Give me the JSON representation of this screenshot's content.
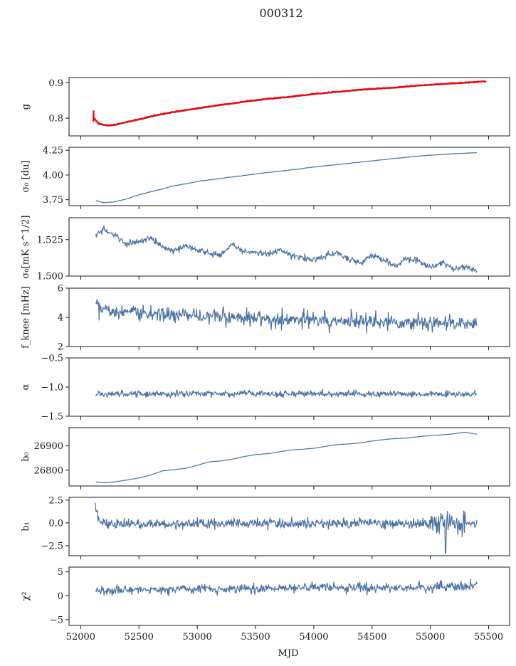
{
  "figure": {
    "title": "000312"
  },
  "chart_data": {
    "type": "line",
    "title": "000312",
    "xlabel": "MJD",
    "xlim": [
      51900,
      55680
    ],
    "xticks": [
      52000,
      52500,
      53000,
      53500,
      54000,
      54500,
      55000,
      55500
    ],
    "series_color": "#4c72a4",
    "fit_color": "#ff0000",
    "panels": [
      {
        "id": "g",
        "ylabel": "g",
        "ylim": [
          0.75,
          0.915
        ],
        "yticks": [
          0.8,
          0.9
        ],
        "yticklabels": [
          "0.8",
          "0.9"
        ],
        "x": [
          52110,
          52150,
          52200,
          52250,
          52300,
          52400,
          52500,
          52600,
          52700,
          52800,
          52900,
          53000,
          53100,
          53200,
          53300,
          53400,
          53500,
          53600,
          53700,
          53800,
          53900,
          54000,
          54100,
          54200,
          54300,
          54400,
          54500,
          54600,
          54700,
          54800,
          54900,
          55000,
          55100,
          55200,
          55300,
          55400
        ],
        "values": [
          0.8,
          0.784,
          0.779,
          0.778,
          0.78,
          0.788,
          0.795,
          0.803,
          0.81,
          0.816,
          0.821,
          0.826,
          0.831,
          0.836,
          0.84,
          0.845,
          0.849,
          0.853,
          0.856,
          0.859,
          0.863,
          0.867,
          0.87,
          0.873,
          0.876,
          0.879,
          0.881,
          0.883,
          0.885,
          0.888,
          0.891,
          0.893,
          0.895,
          0.897,
          0.899,
          0.901
        ],
        "fit": {
          "x": [
            52110,
            52150,
            52200,
            52250,
            52300,
            52400,
            52500,
            52600,
            52700,
            52800,
            52900,
            53000,
            53100,
            53200,
            53300,
            53400,
            53500,
            53600,
            53700,
            53800,
            53900,
            54000,
            54100,
            54200,
            54300,
            54400,
            54500,
            54600,
            54700,
            54800,
            54900,
            55000,
            55100,
            55200,
            55300,
            55400,
            55480
          ],
          "values": [
            0.803,
            0.786,
            0.781,
            0.78,
            0.782,
            0.79,
            0.797,
            0.805,
            0.812,
            0.818,
            0.823,
            0.828,
            0.833,
            0.838,
            0.842,
            0.847,
            0.851,
            0.855,
            0.858,
            0.861,
            0.865,
            0.869,
            0.872,
            0.875,
            0.878,
            0.881,
            0.883,
            0.885,
            0.887,
            0.89,
            0.893,
            0.895,
            0.897,
            0.899,
            0.901,
            0.903,
            0.904
          ],
          "spike": {
            "x": 52110,
            "from": 0.79,
            "to": 0.822
          }
        }
      },
      {
        "id": "sigma0du",
        "ylabel": "σ₀ [du]",
        "ylim": [
          3.69,
          4.28
        ],
        "yticks": [
          3.75,
          4.0,
          4.25
        ],
        "yticklabels": [
          "3.75",
          "4.00",
          "4.25"
        ],
        "x": [
          52130,
          52200,
          52300,
          52400,
          52500,
          52600,
          52700,
          52800,
          52900,
          53000,
          53200,
          53400,
          53600,
          53800,
          54000,
          54200,
          54400,
          54600,
          54800,
          55000,
          55200,
          55400
        ],
        "values": [
          3.74,
          3.72,
          3.73,
          3.76,
          3.8,
          3.83,
          3.86,
          3.89,
          3.91,
          3.935,
          3.965,
          3.995,
          4.025,
          4.05,
          4.08,
          4.105,
          4.13,
          4.155,
          4.18,
          4.2,
          4.215,
          4.225
        ]
      },
      {
        "id": "sigma0mk",
        "ylabel": "σ₀[mK s^1/2]",
        "ylim": [
          1.5,
          1.54
        ],
        "yticks": [
          1.5,
          1.525
        ],
        "yticklabels": [
          "1.500",
          "1.525"
        ],
        "x": [
          52130,
          52200,
          52300,
          52400,
          52500,
          52600,
          52700,
          52800,
          52900,
          53000,
          53100,
          53200,
          53300,
          53400,
          53500,
          53600,
          53700,
          53800,
          53900,
          54000,
          54100,
          54200,
          54300,
          54400,
          54500,
          54600,
          54700,
          54800,
          54900,
          55000,
          55100,
          55200,
          55300,
          55400
        ],
        "values": [
          1.528,
          1.532,
          1.527,
          1.522,
          1.524,
          1.526,
          1.52,
          1.517,
          1.521,
          1.518,
          1.516,
          1.514,
          1.522,
          1.517,
          1.516,
          1.515,
          1.518,
          1.514,
          1.513,
          1.511,
          1.514,
          1.516,
          1.512,
          1.509,
          1.514,
          1.511,
          1.507,
          1.512,
          1.51,
          1.506,
          1.509,
          1.505,
          1.506,
          1.504
        ]
      },
      {
        "id": "fknee",
        "ylabel": "f_knee [mHz]",
        "ylim": [
          2,
          6
        ],
        "yticks": [
          2,
          4,
          6
        ],
        "yticklabels": [
          "2",
          "4",
          "6"
        ],
        "x": [
          52130,
          52200,
          52300,
          52500,
          52700,
          53000,
          53300,
          53600,
          54000,
          54300,
          54600,
          55000,
          55400
        ],
        "values": [
          4.8,
          4.6,
          4.4,
          4.3,
          4.2,
          4.1,
          4.0,
          3.9,
          3.8,
          3.75,
          3.7,
          3.6,
          3.5
        ]
      },
      {
        "id": "alpha",
        "ylabel": "α",
        "ylim": [
          -1.5,
          -0.5
        ],
        "yticks": [
          -1.5,
          -1.0,
          -0.5
        ],
        "yticklabels": [
          "−1.5",
          "−1.0",
          "−0.5"
        ],
        "x": [
          52130,
          53000,
          54000,
          55000,
          55400
        ],
        "values": [
          -1.12,
          -1.11,
          -1.11,
          -1.12,
          -1.13
        ]
      },
      {
        "id": "b0",
        "ylabel": "b₀",
        "ylim": [
          26735,
          26975
        ],
        "yticks": [
          26800,
          26900
        ],
        "yticklabels": [
          "26800",
          "26900"
        ],
        "x": [
          52130,
          52200,
          52300,
          52400,
          52500,
          52600,
          52700,
          52800,
          52900,
          53000,
          53100,
          53200,
          53300,
          53400,
          53500,
          53600,
          53700,
          53800,
          53900,
          54000,
          54100,
          54200,
          54300,
          54400,
          54500,
          54600,
          54700,
          54800,
          54900,
          55000,
          55100,
          55200,
          55300,
          55400
        ],
        "values": [
          26752,
          26748,
          26752,
          26760,
          26768,
          26780,
          26797,
          26802,
          26808,
          26820,
          26834,
          26838,
          26845,
          26856,
          26864,
          26868,
          26875,
          26883,
          26886,
          26890,
          26898,
          26905,
          26908,
          26912,
          26920,
          26926,
          26930,
          26932,
          26938,
          26942,
          26945,
          26950,
          26956,
          26948
        ]
      },
      {
        "id": "b1",
        "ylabel": "b₁",
        "ylim": [
          -3.6,
          2.8
        ],
        "yticks": [
          -2.5,
          0.0,
          2.5
        ],
        "yticklabels": [
          "−2.5",
          "0.0",
          "2.5"
        ],
        "x": [
          52120,
          52150,
          52200,
          53000,
          54000,
          55000,
          55400
        ],
        "values": [
          2.2,
          0.4,
          -0.1,
          -0.1,
          -0.05,
          -0.1,
          -0.1
        ]
      },
      {
        "id": "chi2",
        "ylabel": "χ²",
        "ylim": [
          -6.2,
          6.0
        ],
        "yticks": [
          -5,
          0,
          5
        ],
        "yticklabels": [
          "−5",
          "0",
          "5"
        ],
        "x": [
          52130,
          52500,
          53000,
          53500,
          54000,
          54500,
          55000,
          55400
        ],
        "values": [
          1.0,
          1.3,
          1.5,
          1.4,
          1.8,
          1.6,
          1.7,
          2.1
        ]
      }
    ]
  }
}
